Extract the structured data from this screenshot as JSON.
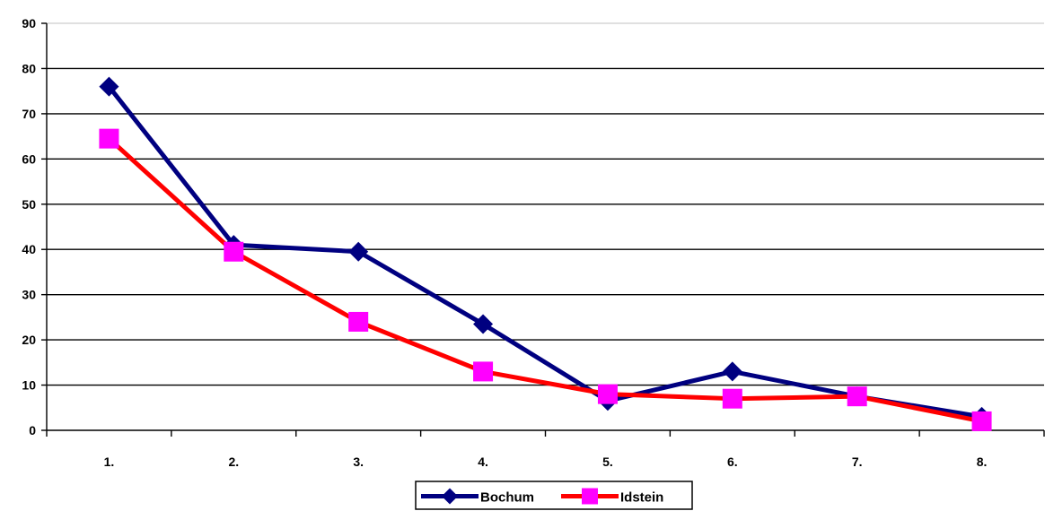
{
  "chart_data": {
    "type": "line",
    "title": "",
    "xlabel": "",
    "ylabel": "",
    "categories": [
      "1.",
      "2.",
      "3.",
      "4.",
      "5.",
      "6.",
      "7.",
      "8."
    ],
    "ylim": [
      0,
      90
    ],
    "yticks": [
      "0",
      "10",
      "20",
      "30",
      "40",
      "50",
      "60",
      "70",
      "80",
      "90"
    ],
    "grid": "horizontal",
    "legend_position": "bottom",
    "series": [
      {
        "name": "Bochum",
        "color": "#000080",
        "marker": "diamond",
        "values": [
          76,
          41,
          39.5,
          23.5,
          6.5,
          13,
          7.5,
          3
        ]
      },
      {
        "name": "Idstein",
        "color": "#FF0000",
        "marker_color": "#FF00FF",
        "marker": "square",
        "values": [
          64.5,
          39.5,
          24,
          13,
          8,
          7,
          7.5,
          2
        ]
      }
    ]
  }
}
